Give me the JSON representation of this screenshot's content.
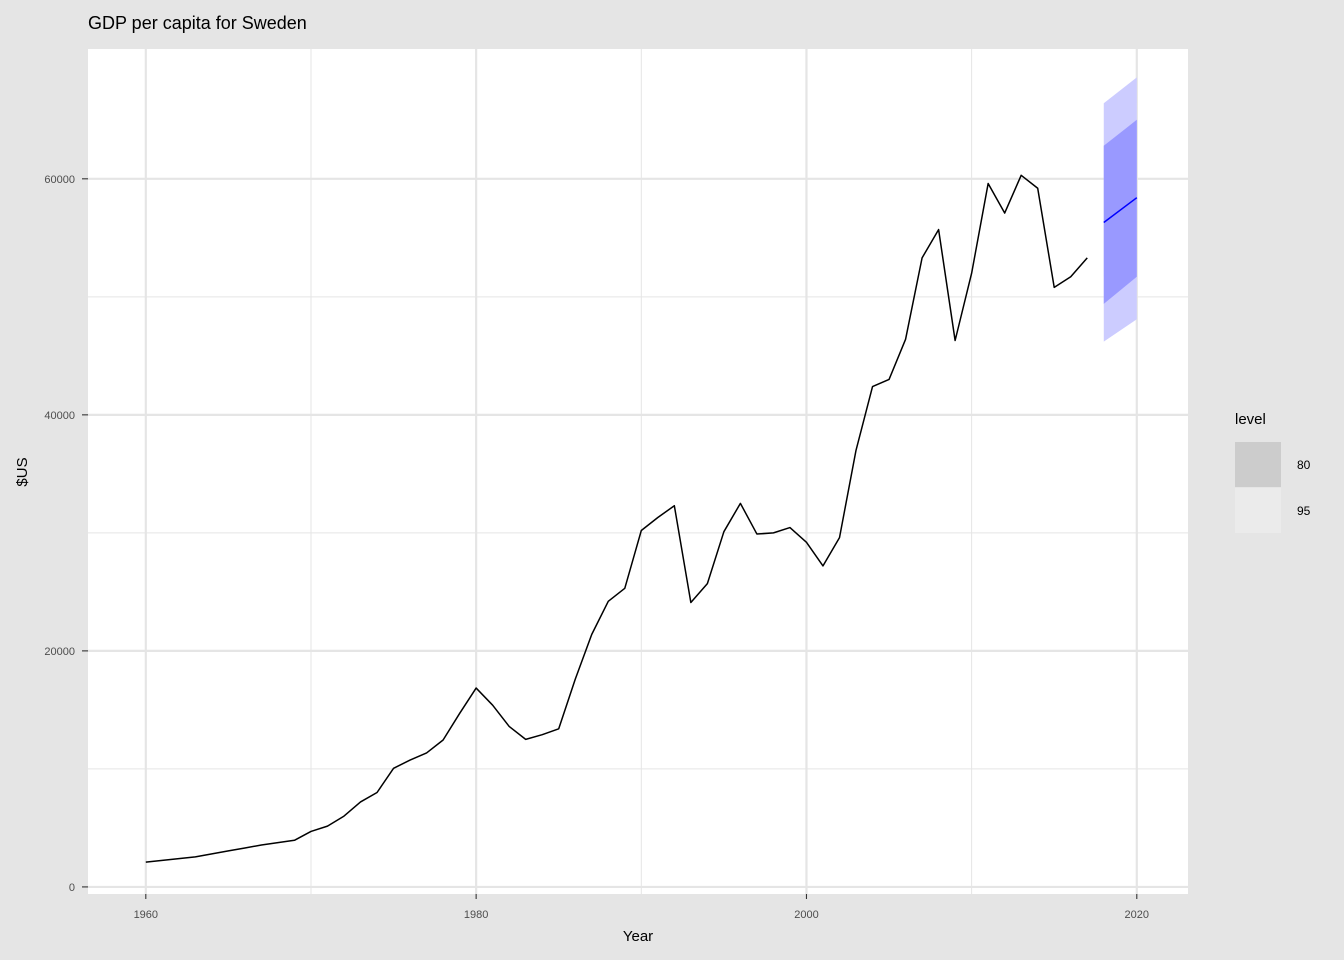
{
  "chart_data": {
    "type": "line",
    "title": "GDP per capita for Sweden",
    "xlabel": "Year",
    "ylabel": "$US",
    "xlim": [
      1956.5,
      2023.1
    ],
    "ylim": [
      -600,
      71000
    ],
    "x_ticks": [
      1960,
      1980,
      2000,
      2020
    ],
    "y_ticks": [
      0,
      20000,
      40000,
      60000
    ],
    "grid": true,
    "colors": {
      "panel_background": "#ffffff",
      "plot_background": "#e5e5e5",
      "grid": "#e5e5e5",
      "history_line": "#000000",
      "forecast_line": "#0000ff",
      "band_80": "#9999ff",
      "band_95": "#ccccff",
      "legend_key_80": "#cccccc",
      "legend_key_95": "#ebebeb"
    },
    "series": [
      {
        "years": [
          1960,
          1961,
          1962,
          1963,
          1964,
          1965,
          1966,
          1967,
          1968,
          1969,
          1970,
          1971,
          1972,
          1973,
          1974,
          1975,
          1976,
          1977,
          1978,
          1979,
          1980,
          1981,
          1982,
          1983,
          1984,
          1985,
          1986,
          1987,
          1988,
          1989,
          1990,
          1991,
          1992,
          1993,
          1994,
          1995,
          1996,
          1997,
          1998,
          1999,
          2000,
          2001,
          2002,
          2003,
          2004,
          2005,
          2006,
          2007,
          2008,
          2009,
          2010,
          2011,
          2012,
          2013,
          2014,
          2015,
          2016,
          2017
        ],
        "values": [
          2100,
          2250,
          2400,
          2550,
          2800,
          3050,
          3300,
          3550,
          3750,
          3950,
          4700,
          5150,
          6000,
          7200,
          8000,
          10050,
          10750,
          11350,
          12450,
          14700,
          16850,
          15400,
          13600,
          12500,
          12900,
          13400,
          17600,
          21400,
          24200,
          25300,
          30200,
          31300,
          32300,
          24100,
          25700,
          30100,
          32500,
          29900,
          30000,
          30450,
          29200,
          27200,
          29600,
          37000,
          42400,
          43000,
          46400,
          53300,
          55700,
          46300,
          52000,
          59600,
          57100,
          60300,
          59200,
          50800,
          51700,
          53300
        ]
      }
    ],
    "forecast": {
      "years": [
        2018,
        2020
      ],
      "mean": [
        56300,
        58400
      ],
      "lo80": [
        49400,
        51700
      ],
      "hi80": [
        62800,
        65000
      ],
      "lo95": [
        46200,
        48100
      ],
      "hi95": [
        66400,
        68600
      ]
    },
    "legend": {
      "title": "level",
      "position": "right",
      "items": [
        {
          "label": "80"
        },
        {
          "label": "95"
        }
      ]
    }
  }
}
